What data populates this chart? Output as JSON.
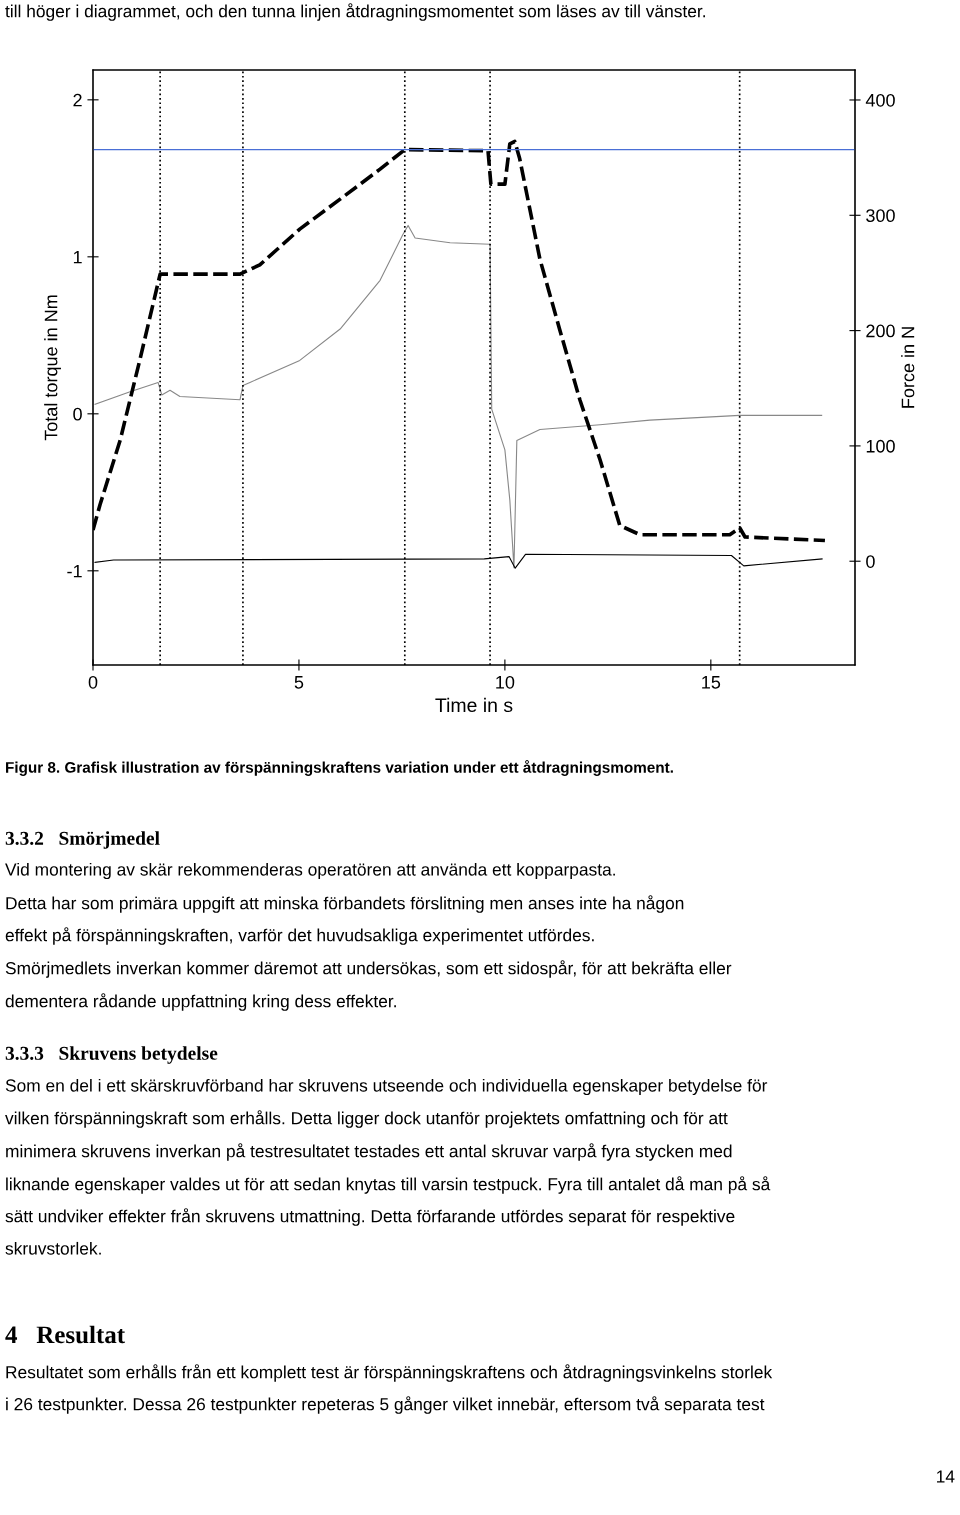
{
  "chart_data": {
    "type": "line",
    "xlabel": "Time in s",
    "ylabel": "Total torque in Nm",
    "y2label": "Force in N",
    "xlim": [
      0,
      18.5
    ],
    "xticks": [
      0,
      5,
      10,
      15
    ],
    "ylim": [
      -1.6,
      2.19
    ],
    "yticks": [
      -1,
      0,
      1,
      2
    ],
    "y2lim": [
      -90,
      426
    ],
    "y2ticks": [
      0,
      100,
      200,
      300,
      400
    ],
    "grid": false,
    "marker": "none",
    "series": [
      {
        "color": "#000000",
        "axis": "y2",
        "line_style": "dashed",
        "x": [
          0,
          0.17,
          0.66,
          1.14,
          1.63,
          3.57,
          4.05,
          5.02,
          6.0,
          6.97,
          7.57,
          9.59,
          9.66,
          10.0,
          10.12,
          10.24,
          10.36,
          10.85,
          11.33,
          11.82,
          12.31,
          12.79,
          13.28,
          15.46,
          15.7,
          15.83,
          17.77
        ],
        "values": [
          27,
          49,
          105,
          175,
          249,
          249,
          257,
          288,
          314,
          340,
          357,
          356,
          327,
          327,
          362,
          364,
          349,
          262,
          201,
          140,
          88,
          31,
          23,
          23,
          29,
          21,
          18
        ]
      },
      {
        "color": "#888888",
        "line_style": "solid",
        "x": [
          0.05,
          0.9,
          1.58,
          1.67,
          1.87,
          2.11,
          3.57,
          3.64,
          3.81,
          5.02,
          6.0,
          6.97,
          7.52,
          7.65,
          7.82,
          8.67,
          9.64,
          9.68,
          10.0,
          10.12,
          10.22,
          10.29,
          10.85,
          12.31,
          13.52,
          15.7,
          17.69
        ],
        "values": [
          0.06,
          0.14,
          0.2,
          0.12,
          0.15,
          0.11,
          0.09,
          0.18,
          0.2,
          0.34,
          0.54,
          0.85,
          1.14,
          1.2,
          1.12,
          1.09,
          1.08,
          0.03,
          -0.23,
          -0.55,
          -0.98,
          -0.17,
          -0.1,
          -0.07,
          -0.04,
          -0.01,
          -0.01
        ]
      },
      {
        "color": "#000000",
        "axis": "y2",
        "line_style": "solid",
        "x": [
          0.05,
          0.5,
          9.5,
          10.1,
          10.25,
          10.5,
          15.5,
          15.8,
          17.7
        ],
        "values": [
          -1,
          1,
          2,
          4,
          -6,
          6,
          5,
          -4,
          2
        ]
      }
    ],
    "ref_lines": [
      {
        "axis": "y2",
        "value": 357,
        "color": "#4a6fd6",
        "line_style": "solid"
      },
      {
        "axis": "x",
        "value": 1.63,
        "color": "#000000",
        "line_style": "dotted"
      },
      {
        "axis": "x",
        "value": 3.64,
        "color": "#000000",
        "line_style": "dotted"
      },
      {
        "axis": "x",
        "value": 7.57,
        "color": "#000000",
        "line_style": "dotted"
      },
      {
        "axis": "x",
        "value": 9.64,
        "color": "#000000",
        "line_style": "dotted"
      },
      {
        "axis": "x",
        "value": 15.7,
        "color": "#000000",
        "line_style": "dotted"
      }
    ],
    "annotations": [
      "till höger i diagrammet, och den tunna linjen åtdragningsmomentet som läses av till vänster.",
      "Figur 8. Grafisk illustration av förspänningskraftens variation under ett åtdragningsmoment.",
      "3.3.2   Smörjmedel",
      "Vid montering av skär rekommenderas operatören att använda ett kopparpasta.",
      "Detta har som primära uppgift att minska förbandets förslitning men anses inte ha någon",
      "effekt på förspänningskraften, varför det huvudsakliga experimentet utfördes.",
      "Smörjmedlets inverkan kommer däremot att undersökas, som ett sidospår, för att bekräfta eller",
      "dementera rådande uppfattning kring dess effekter.",
      "3.3.3   Skruvens betydelse",
      "Som en del i ett skärskruvförband har skruvens utseende och individuella egenskaper betydelse för",
      "vilken förspänningskraft som erhålls. Detta ligger dock utanför projektets omfattning och för att",
      "minimera skruvens inverkan på testresultatet testades ett antal skruvar varpå fyra stycken med",
      "liknande egenskaper valdes ut för att sedan knytas till varsin testpuck. Fyra till antalet då man på så",
      "sätt undviker effekter från skruvens utmattning. Detta förfarande utfördes separat för respektive",
      "skruvstorlek.",
      "4   Resultat",
      "Resultatet som erhålls från ett komplett test är förspänningskraftens och åtdragningsvinkelns storlek",
      "i 26 testpunkter. Dessa 26 testpunkter repeteras 5 gånger vilket innebär, eftersom två separata test",
      "14"
    ]
  }
}
